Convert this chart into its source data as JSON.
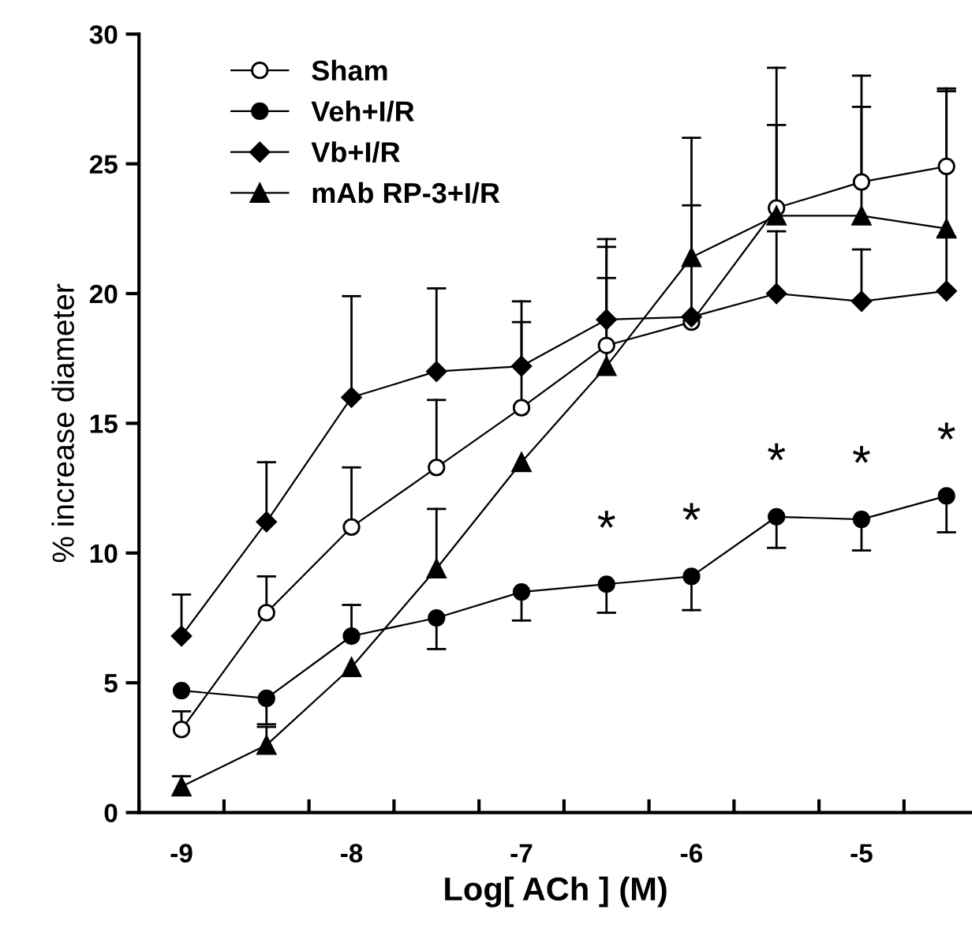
{
  "chart_data": {
    "type": "line",
    "xlabel": "Log[ ACh ] (M)",
    "ylabel": "% increase diameter",
    "x": [
      -9,
      -8.5,
      -8,
      -7.5,
      -7,
      -6.5,
      -6,
      -5.5,
      -5,
      -4.5
    ],
    "series": [
      {
        "name": "Sham",
        "color": "#ffffff",
        "marker": "circle",
        "values": [
          3.2,
          7.7,
          11.0,
          13.3,
          15.6,
          18.0,
          18.9,
          23.3,
          24.3,
          24.9
        ],
        "errors": [
          [
            3.2,
            3.9
          ],
          [
            7.7,
            9.1
          ],
          [
            11.0,
            13.3
          ],
          [
            13.3,
            15.9
          ],
          [
            15.6,
            18.9
          ],
          [
            18.0,
            20.6
          ],
          [
            18.9,
            23.4
          ],
          [
            23.3,
            28.7
          ],
          [
            24.3,
            28.4
          ],
          [
            24.9,
            27.9
          ]
        ]
      },
      {
        "name": "Veh+I/R",
        "color": "#000000",
        "marker": "circle",
        "values": [
          4.7,
          4.4,
          6.8,
          7.5,
          8.5,
          8.8,
          9.1,
          11.4,
          11.3,
          12.2
        ],
        "errors": [
          null,
          [
            3.4,
            4.4
          ],
          [
            6.8,
            8.0
          ],
          [
            6.3,
            7.5
          ],
          [
            7.4,
            8.5
          ],
          [
            7.7,
            8.8
          ],
          [
            7.8,
            9.1
          ],
          [
            10.2,
            11.4
          ],
          [
            10.1,
            11.3
          ],
          [
            10.8,
            12.2
          ]
        ]
      },
      {
        "name": "Vb+I/R",
        "color": "#000000",
        "marker": "diamond",
        "values": [
          6.8,
          11.2,
          16.0,
          17.0,
          17.2,
          19.0,
          19.1,
          20.0,
          19.7,
          20.1
        ],
        "errors": [
          [
            6.8,
            8.4
          ],
          [
            11.2,
            13.5
          ],
          [
            16.0,
            19.9
          ],
          [
            17.0,
            20.2
          ],
          [
            17.2,
            19.7
          ],
          [
            19.0,
            22.1
          ],
          null,
          [
            20.0,
            22.4
          ],
          [
            19.7,
            21.7
          ],
          [
            20.1,
            22.2
          ]
        ]
      },
      {
        "name": "mAb RP-3+I/R",
        "color": "#000000",
        "marker": "triangle",
        "values": [
          1.0,
          2.6,
          5.6,
          9.4,
          13.5,
          17.2,
          21.4,
          23.0,
          23.0,
          22.5
        ],
        "errors": [
          [
            1.0,
            1.4
          ],
          [
            2.6,
            3.3
          ],
          null,
          [
            9.4,
            11.7
          ],
          null,
          [
            17.2,
            21.8
          ],
          [
            21.4,
            26.0
          ],
          [
            23.0,
            26.5
          ],
          [
            23.0,
            27.2
          ],
          [
            22.5,
            27.8
          ]
        ]
      }
    ],
    "annotations": [
      {
        "text": "*",
        "x": -6.5,
        "y": 8.8
      },
      {
        "text": "*",
        "x": -6,
        "y": 9.1
      },
      {
        "text": "*",
        "x": -5.5,
        "y": 11.4
      },
      {
        "text": "*",
        "x": -5,
        "y": 11.3
      },
      {
        "text": "*",
        "x": -4.5,
        "y": 12.2
      }
    ],
    "xlim": [
      -9.25,
      -4.35
    ],
    "ylim": [
      0,
      30
    ],
    "xticks": [
      {
        "value": -9.25,
        "label": null
      },
      {
        "value": -9,
        "label": "-9"
      },
      {
        "value": -8.75,
        "label": null
      },
      {
        "value": -8.25,
        "label": null
      },
      {
        "value": -8,
        "label": "-8"
      },
      {
        "value": -7.75,
        "label": null
      },
      {
        "value": -7.25,
        "label": null
      },
      {
        "value": -7,
        "label": "-7"
      },
      {
        "value": -6.75,
        "label": null
      },
      {
        "value": -6.25,
        "label": null
      },
      {
        "value": -6,
        "label": "-6"
      },
      {
        "value": -5.75,
        "label": null
      },
      {
        "value": -5.25,
        "label": null
      },
      {
        "value": -5,
        "label": "-5"
      },
      {
        "value": -4.75,
        "label": null
      }
    ],
    "yticks": [
      0,
      5,
      10,
      15,
      20,
      25,
      30
    ],
    "grid": false,
    "legend": "top left",
    "line_style": "solid"
  }
}
